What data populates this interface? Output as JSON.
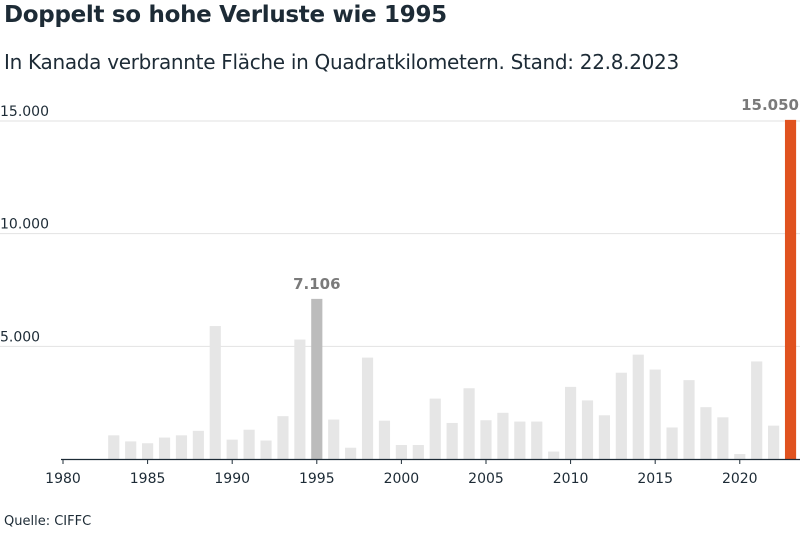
{
  "title": "Doppelt so hohe Verluste wie 1995",
  "subtitle": "In Kanada verbrannte Fläche in Quadratkilometern. Stand: 22.8.2023",
  "source": "Quelle: CIFFC",
  "colors": {
    "default_bar": "#e6e6e6",
    "highlight_1995": "#bcbcbc",
    "highlight_2023": "#e0521f",
    "label_1995": "#7a7a7a",
    "label_2023": "#7a7a7a"
  },
  "chart_data": {
    "type": "bar",
    "title": "Doppelt so hohe Verluste wie 1995",
    "subtitle": "In Kanada verbrannte Fläche in Quadratkilometern. Stand: 22.8.2023",
    "xlabel": "",
    "ylabel": "",
    "x": [
      1983,
      1984,
      1985,
      1986,
      1987,
      1988,
      1989,
      1990,
      1991,
      1992,
      1993,
      1994,
      1995,
      1996,
      1997,
      1998,
      1999,
      2000,
      2001,
      2002,
      2003,
      2004,
      2005,
      2006,
      2007,
      2008,
      2009,
      2010,
      2011,
      2012,
      2013,
      2014,
      2015,
      2016,
      2017,
      2018,
      2019,
      2020,
      2021,
      2022,
      2023
    ],
    "values": [
      1050,
      780,
      700,
      950,
      1050,
      1250,
      5900,
      860,
      1300,
      820,
      1900,
      5300,
      7106,
      1750,
      500,
      4500,
      1700,
      620,
      620,
      2680,
      1600,
      3140,
      1720,
      2050,
      1660,
      1660,
      330,
      3200,
      2600,
      1940,
      3830,
      4630,
      3970,
      1400,
      3500,
      2300,
      1850,
      220,
      4330,
      1480,
      15050
    ],
    "xlim": [
      1980,
      2023
    ],
    "ylim": [
      0,
      15500
    ],
    "xticks": [
      "1980",
      "1985",
      "1990",
      "1995",
      "2000",
      "2005",
      "2010",
      "2015",
      "2020"
    ],
    "yticks": [
      {
        "value": 5000,
        "label": "5.000"
      },
      {
        "value": 10000,
        "label": "10.000"
      },
      {
        "value": 15000,
        "label": "15.000"
      }
    ],
    "highlights": [
      {
        "x": 1995,
        "label": "7.106"
      },
      {
        "x": 2023,
        "label": "15.050"
      }
    ],
    "grid": true,
    "legend": "none"
  }
}
